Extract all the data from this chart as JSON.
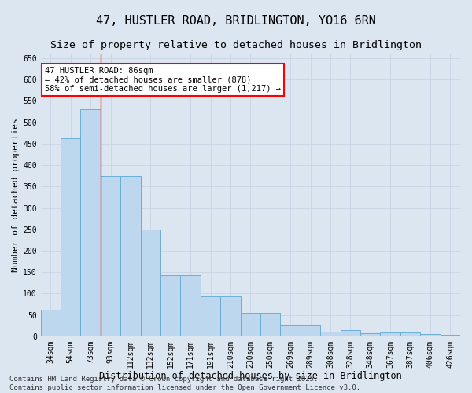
{
  "title": "47, HUSTLER ROAD, BRIDLINGTON, YO16 6RN",
  "subtitle": "Size of property relative to detached houses in Bridlington",
  "xlabel": "Distribution of detached houses by size in Bridlington",
  "ylabel": "Number of detached properties",
  "categories": [
    "34sqm",
    "54sqm",
    "73sqm",
    "93sqm",
    "112sqm",
    "132sqm",
    "152sqm",
    "171sqm",
    "191sqm",
    "210sqm",
    "230sqm",
    "250sqm",
    "269sqm",
    "289sqm",
    "308sqm",
    "328sqm",
    "348sqm",
    "367sqm",
    "387sqm",
    "406sqm",
    "426sqm"
  ],
  "values": [
    62,
    463,
    530,
    375,
    375,
    250,
    143,
    143,
    93,
    93,
    55,
    55,
    26,
    26,
    10,
    14,
    6,
    8,
    8,
    5,
    3
  ],
  "bar_color": "#bdd7ee",
  "bar_edge_color": "#6baed6",
  "bar_linewidth": 0.7,
  "grid_color": "#c8d4e6",
  "background_color": "#dce6f1",
  "annotation_text": "47 HUSTLER ROAD: 86sqm\n← 42% of detached houses are smaller (878)\n58% of semi-detached houses are larger (1,217) →",
  "annotation_box_color": "white",
  "annotation_box_edge": "red",
  "red_line_x": 2.5,
  "ylim": [
    0,
    660
  ],
  "yticks": [
    0,
    50,
    100,
    150,
    200,
    250,
    300,
    350,
    400,
    450,
    500,
    550,
    600,
    650
  ],
  "footnote": "Contains HM Land Registry data © Crown copyright and database right 2025.\nContains public sector information licensed under the Open Government Licence v3.0.",
  "title_fontsize": 11,
  "subtitle_fontsize": 9.5,
  "xlabel_fontsize": 8.5,
  "ylabel_fontsize": 8,
  "tick_fontsize": 7,
  "annotation_fontsize": 7.5,
  "footnote_fontsize": 6.5
}
